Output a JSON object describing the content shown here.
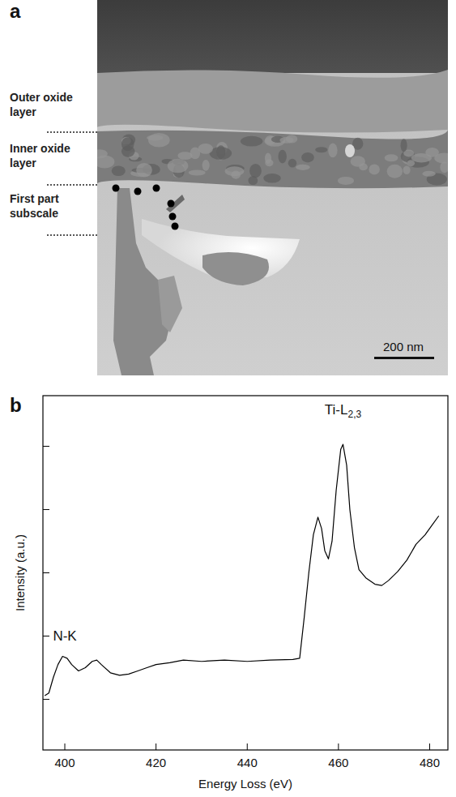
{
  "image_panel": {
    "panel_label": "a",
    "layer_labels": [
      "Outer oxide layer",
      "Inner oxide layer",
      "First part subscale"
    ],
    "scale_bar": "200 nm"
  },
  "chart_data": {
    "type": "line",
    "panel_label": "b",
    "x_label": "Energy Loss (eV)",
    "y_label": "Intensity (a.u.)",
    "color": "#000000",
    "x": [
      395.6,
      396.5,
      397.5,
      398.5,
      399.5,
      400.5,
      401.5,
      403,
      404.5,
      406,
      407,
      408,
      410,
      412,
      414,
      416,
      418,
      420,
      423,
      426,
      430,
      435,
      440,
      445,
      450,
      451.5,
      452.5,
      453.5,
      454.5,
      455.5,
      456.3,
      457,
      457.8,
      458.6,
      459.5,
      460.5,
      461,
      461.8,
      462.5,
      463.5,
      464.5,
      466,
      468,
      469.5,
      471,
      473,
      475,
      477,
      479,
      480.5,
      482
    ],
    "values": [
      1.06,
      1.1,
      1.35,
      1.55,
      1.68,
      1.65,
      1.55,
      1.45,
      1.5,
      1.6,
      1.62,
      1.55,
      1.42,
      1.38,
      1.4,
      1.45,
      1.5,
      1.55,
      1.58,
      1.62,
      1.6,
      1.62,
      1.6,
      1.62,
      1.63,
      1.65,
      2.3,
      3.0,
      3.6,
      3.88,
      3.7,
      3.35,
      3.22,
      3.5,
      4.3,
      4.95,
      5.03,
      4.7,
      4.0,
      3.4,
      3.05,
      2.92,
      2.82,
      2.8,
      2.88,
      3.02,
      3.2,
      3.45,
      3.6,
      3.75,
      3.9
    ],
    "xlim": [
      395.2,
      484
    ],
    "xticks": [
      400,
      420,
      440,
      460,
      480
    ],
    "ylim": [
      0.2,
      5.8
    ],
    "yticks": [
      1,
      2,
      3,
      4,
      5
    ],
    "tick_labels": "x",
    "annotations": [
      {
        "text": "N-K",
        "x": 400,
        "y": 1.93
      },
      {
        "text": "Ti-L",
        "subscript": "2,3",
        "x": 461,
        "y": 5.5
      }
    ]
  }
}
